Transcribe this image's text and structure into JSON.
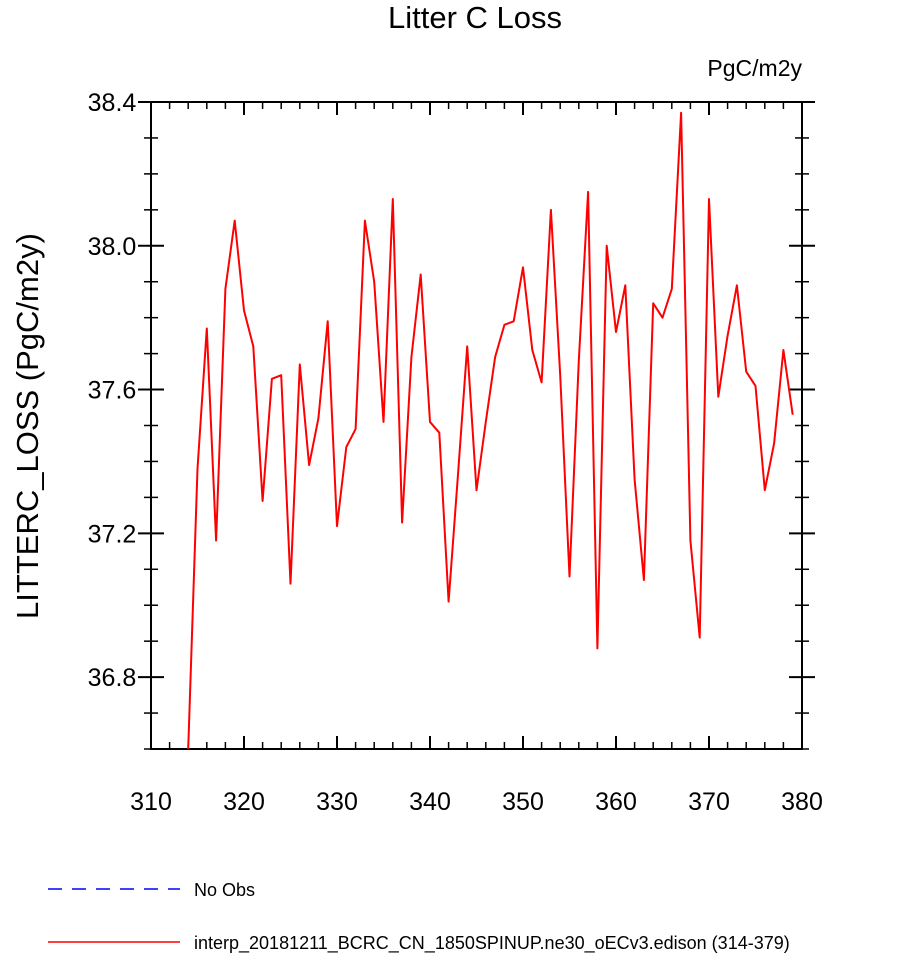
{
  "chart_data": {
    "type": "line",
    "title": "Litter C Loss",
    "units_label": "PgC/m2y",
    "ylabel": "LITTERC_LOSS  (PgC/m2y)",
    "xlabel": "",
    "xlim": [
      310,
      380
    ],
    "ylim": [
      36.6,
      38.4
    ],
    "x_ticks": [
      310,
      320,
      330,
      340,
      350,
      360,
      370,
      380
    ],
    "x_tick_labels": [
      "310",
      "320",
      "330",
      "340",
      "350",
      "360",
      "370",
      "380"
    ],
    "y_ticks": [
      36.8,
      37.2,
      37.6,
      38.0,
      38.4
    ],
    "y_tick_labels": [
      "36.8",
      "37.2",
      "37.6",
      "38.0",
      "38.4"
    ],
    "grid": false,
    "legend_position": "bottom",
    "series": [
      {
        "name": "No Obs",
        "color": "#0000ff",
        "dash": "dashed",
        "x": [],
        "y": []
      },
      {
        "name": "interp_20181211_BCRC_CN_1850SPINUP.ne30_oECv3.edison (314-379)",
        "color": "#ff0000",
        "dash": "solid",
        "x": [
          314,
          315,
          316,
          317,
          318,
          319,
          320,
          321,
          322,
          323,
          324,
          325,
          326,
          327,
          328,
          329,
          330,
          331,
          332,
          333,
          334,
          335,
          336,
          337,
          338,
          339,
          340,
          341,
          342,
          343,
          344,
          345,
          346,
          347,
          348,
          349,
          350,
          351,
          352,
          353,
          354,
          355,
          356,
          357,
          358,
          359,
          360,
          361,
          362,
          363,
          364,
          365,
          366,
          367,
          368,
          369,
          370,
          371,
          372,
          373,
          374,
          375,
          376,
          377,
          378,
          379
        ],
        "y": [
          36.6,
          37.38,
          37.77,
          37.18,
          37.88,
          38.07,
          37.82,
          37.72,
          37.29,
          37.63,
          37.64,
          37.06,
          37.67,
          37.39,
          37.52,
          37.79,
          37.22,
          37.44,
          37.49,
          38.07,
          37.9,
          37.51,
          38.13,
          37.23,
          37.69,
          37.92,
          37.51,
          37.48,
          37.01,
          37.36,
          37.72,
          37.32,
          37.51,
          37.69,
          37.78,
          37.79,
          37.94,
          37.71,
          37.62,
          38.1,
          37.64,
          37.08,
          37.68,
          38.15,
          36.88,
          38.0,
          37.76,
          37.89,
          37.35,
          37.07,
          37.84,
          37.8,
          37.88,
          38.37,
          37.18,
          36.91,
          38.13,
          37.58,
          37.75,
          37.89,
          37.65,
          37.61,
          37.32,
          37.45,
          37.71,
          37.53
        ]
      }
    ]
  }
}
